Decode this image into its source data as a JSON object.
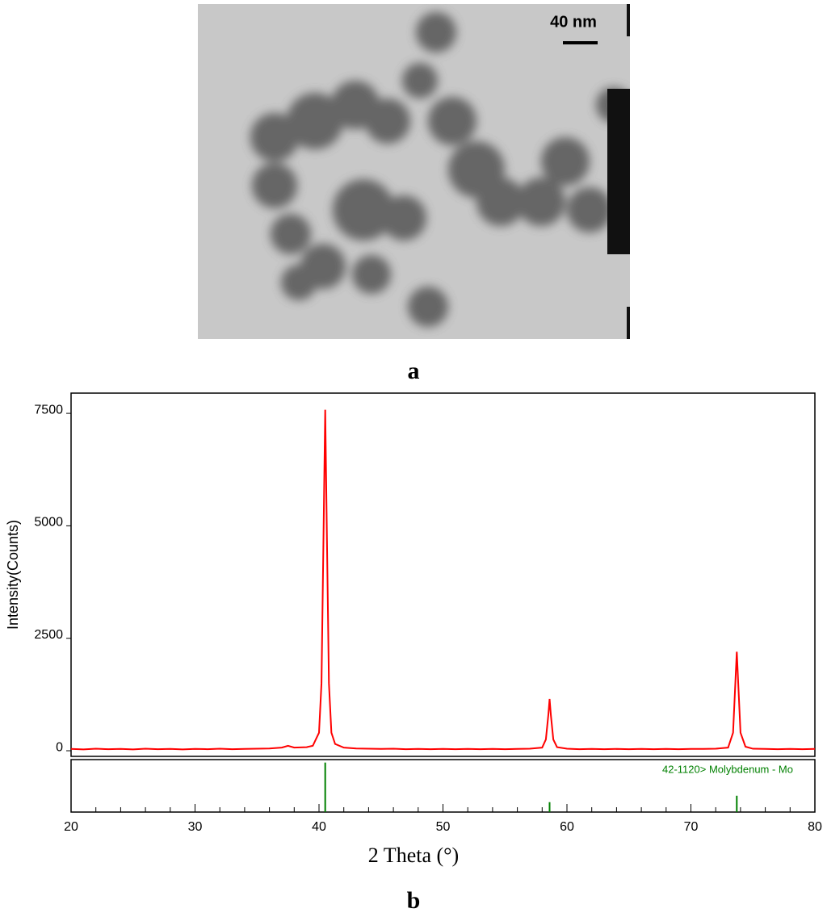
{
  "figure": {
    "scale_label": "40 nm",
    "panel_labels": [
      "a",
      "b"
    ]
  },
  "chart_data": {
    "type": "line",
    "xlabel": "2 Theta (°)",
    "ylabel": "Intensity(Counts)",
    "xlim": [
      20,
      80
    ],
    "xticks": [
      20,
      30,
      40,
      50,
      60,
      70,
      80
    ],
    "xminorticks": [
      22,
      24,
      26,
      28,
      32,
      34,
      36,
      38,
      42,
      44,
      46,
      48,
      52,
      54,
      56,
      58,
      62,
      64,
      66,
      68,
      72,
      74,
      76,
      78
    ],
    "ylim": [
      -125,
      7950
    ],
    "yticks": [
      0,
      2500,
      5000,
      7500
    ],
    "series": [
      {
        "color": "#ff0000",
        "x": [
          20,
          21,
          22,
          23,
          24,
          25,
          26,
          27,
          28,
          29,
          30,
          31,
          32,
          33,
          34,
          35,
          36,
          37,
          37.5,
          38,
          39,
          39.5,
          40,
          40.2,
          40.35,
          40.5,
          40.65,
          40.8,
          41,
          41.3,
          42,
          43,
          44,
          45,
          46,
          47,
          48,
          49,
          50,
          51,
          52,
          53,
          54,
          55,
          56,
          57,
          58,
          58.3,
          58.5,
          58.6,
          58.7,
          58.9,
          59.2,
          60,
          61,
          62,
          63,
          64,
          65,
          66,
          67,
          68,
          69,
          70,
          71,
          72,
          73,
          73.4,
          73.6,
          73.7,
          73.8,
          74,
          74.4,
          75,
          76,
          77,
          78,
          79,
          80
        ],
        "values": [
          40,
          30,
          45,
          35,
          40,
          30,
          45,
          35,
          40,
          30,
          40,
          35,
          45,
          35,
          40,
          45,
          50,
          70,
          110,
          70,
          80,
          110,
          400,
          1500,
          4500,
          7580,
          4500,
          1500,
          400,
          150,
          70,
          50,
          45,
          40,
          45,
          35,
          40,
          35,
          40,
          35,
          40,
          35,
          40,
          35,
          40,
          45,
          70,
          250,
          800,
          1150,
          800,
          250,
          80,
          45,
          35,
          40,
          35,
          40,
          35,
          40,
          35,
          40,
          35,
          40,
          40,
          45,
          70,
          400,
          1600,
          2200,
          1600,
          400,
          90,
          45,
          40,
          35,
          40,
          35,
          40
        ]
      }
    ],
    "reference": {
      "name": "42-1120> Molybdenum - Mo",
      "color": "#008000",
      "x": [
        40.5,
        58.6,
        73.7
      ],
      "values": [
        100,
        20,
        33
      ],
      "ylim": [
        0,
        106
      ]
    }
  }
}
